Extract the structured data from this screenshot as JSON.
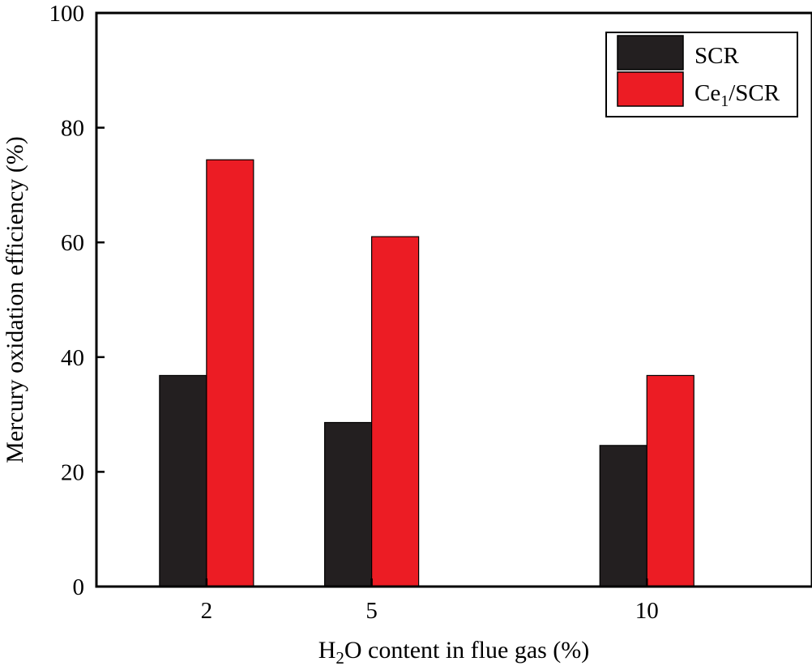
{
  "chart_data": {
    "type": "bar",
    "title": "",
    "x": [
      2,
      5,
      10
    ],
    "categories": [
      "2",
      "5",
      "10"
    ],
    "xlim": [
      0,
      13
    ],
    "xlabel": {
      "pre": "H",
      "sub": "2",
      "post": "O content in flue gas (%)"
    },
    "ylabel": "Mercury oxidation efficiency (%)",
    "ylim": [
      0,
      100
    ],
    "yticks": [
      0,
      20,
      40,
      60,
      80,
      100
    ],
    "grid": false,
    "legend_position": "top-right",
    "series": [
      {
        "name": "SCR",
        "label": {
          "pre": "SCR",
          "sub": "",
          "post": ""
        },
        "color": "#231f20",
        "values": [
          36.8,
          28.6,
          24.6
        ]
      },
      {
        "name": "Ce1/SCR",
        "label": {
          "pre": "Ce",
          "sub": "1",
          "post": "/SCR"
        },
        "color": "#ec1c24",
        "values": [
          74.4,
          61.0,
          36.8
        ]
      }
    ]
  }
}
